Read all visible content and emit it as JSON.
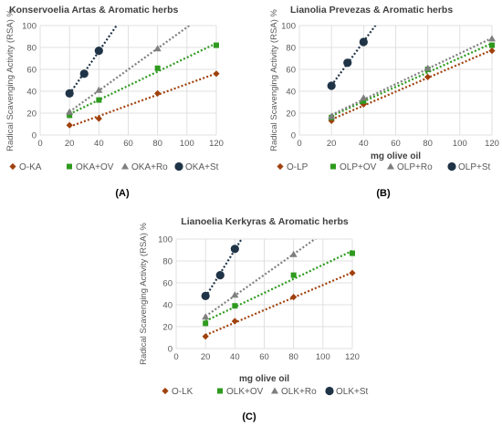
{
  "colors": {
    "O": "#a0410d",
    "OV": "#2e9a1e",
    "Ro": "#7f7f7f",
    "St": "#203447",
    "grid": "#d9d9d9",
    "axis_text": "#595959",
    "title_text": "#404040"
  },
  "chart_data": [
    {
      "type": "scatter",
      "panel_label": "(A)",
      "title": "Konservoelia Artas & Aromatic herbs",
      "xlabel": "",
      "ylabel": "Radical Scavenging Activity (RSA) %",
      "xlim": [
        0,
        120
      ],
      "ylim": [
        0,
        100
      ],
      "xticks": [
        "0",
        "20",
        "40",
        "60",
        "80",
        "100",
        "120"
      ],
      "yticks": [
        "0",
        "20",
        "40",
        "60",
        "80",
        "100"
      ],
      "grid": true,
      "legend_position": "bottom",
      "trendlines": "linear, dotted",
      "series": [
        {
          "name": "O-KA",
          "key": "O",
          "marker": "diamond",
          "x": [
            20,
            40,
            80,
            120
          ],
          "y": [
            9,
            15,
            38,
            56
          ]
        },
        {
          "name": "OKA+OV",
          "key": "OV",
          "marker": "square",
          "x": [
            20,
            40,
            80,
            120
          ],
          "y": [
            18,
            32,
            61,
            82
          ]
        },
        {
          "name": "OKA+Ro",
          "key": "Ro",
          "marker": "triangle",
          "x": [
            20,
            40,
            80
          ],
          "y": [
            21,
            41,
            79
          ]
        },
        {
          "name": "OKA+St",
          "key": "St",
          "marker": "circle",
          "x": [
            20,
            30,
            40
          ],
          "y": [
            38,
            56,
            77
          ]
        }
      ]
    },
    {
      "type": "scatter",
      "panel_label": "(B)",
      "title": "Lianolia Prevezas & Aromatic herbs",
      "xlabel": "mg olive oil",
      "ylabel": "Radical Scavenging Activity (RSA) %",
      "xlim": [
        0,
        120
      ],
      "ylim": [
        0,
        100
      ],
      "xticks": [
        "0",
        "20",
        "40",
        "60",
        "80",
        "100",
        "120"
      ],
      "yticks": [
        "0",
        "20",
        "40",
        "60",
        "80",
        "100"
      ],
      "grid": true,
      "legend_position": "bottom",
      "trendlines": "linear, dotted",
      "series": [
        {
          "name": "O-LP",
          "key": "O",
          "marker": "diamond",
          "x": [
            20,
            40,
            80,
            120
          ],
          "y": [
            13,
            28,
            53,
            77
          ]
        },
        {
          "name": "OLP+OV",
          "key": "OV",
          "marker": "square",
          "x": [
            20,
            40,
            80,
            120
          ],
          "y": [
            16,
            31,
            60,
            82
          ]
        },
        {
          "name": "OLP+Ro",
          "key": "Ro",
          "marker": "triangle",
          "x": [
            20,
            40,
            80,
            120
          ],
          "y": [
            17,
            34,
            61,
            88
          ]
        },
        {
          "name": "OLP+St",
          "key": "St",
          "marker": "circle",
          "x": [
            20,
            30,
            40
          ],
          "y": [
            45,
            66,
            85
          ]
        }
      ]
    },
    {
      "type": "scatter",
      "panel_label": "(C)",
      "title": "Lianoelia Kerkyras & Aromatic herbs",
      "xlabel": "mg olive oil",
      "ylabel": "Radical Scavenging Activity (RSA) %",
      "xlim": [
        0,
        120
      ],
      "ylim": [
        0,
        100
      ],
      "xticks": [
        "0",
        "20",
        "40",
        "60",
        "80",
        "100",
        "120"
      ],
      "yticks": [
        "0",
        "20",
        "40",
        "60",
        "80",
        "100"
      ],
      "grid": true,
      "legend_position": "bottom",
      "trendlines": "linear, dotted",
      "series": [
        {
          "name": "O-LK",
          "key": "O",
          "marker": "diamond",
          "x": [
            20,
            40,
            80,
            120
          ],
          "y": [
            11,
            25,
            47,
            69
          ]
        },
        {
          "name": "OLK+OV",
          "key": "OV",
          "marker": "square",
          "x": [
            20,
            40,
            80,
            120
          ],
          "y": [
            23,
            39,
            67,
            87
          ]
        },
        {
          "name": "OLK+Ro",
          "key": "Ro",
          "marker": "triangle",
          "x": [
            20,
            40,
            80
          ],
          "y": [
            29,
            49,
            86
          ]
        },
        {
          "name": "OLK+St",
          "key": "St",
          "marker": "circle",
          "x": [
            20,
            30,
            40
          ],
          "y": [
            48,
            67,
            91
          ]
        }
      ]
    }
  ]
}
